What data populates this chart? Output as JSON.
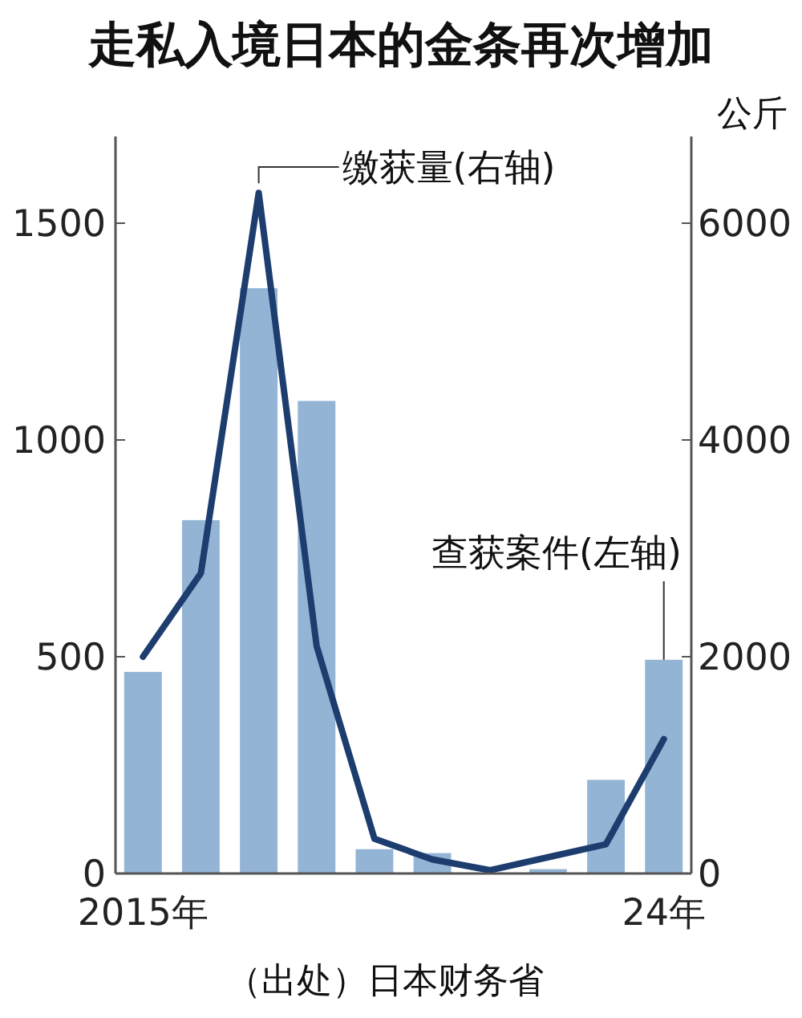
{
  "chart_data": {
    "type": "bar",
    "title": "走私入境日本的金条再次增加",
    "categories": [
      "2015年",
      null,
      null,
      null,
      null,
      null,
      null,
      null,
      null,
      "24年"
    ],
    "series": [
      {
        "name": "查获案件(左轴)",
        "color": "#93b4d4",
        "values": [
          465,
          815,
          1350,
          1090,
          56,
          47,
          null,
          10,
          216,
          493
        ]
      },
      {
        "name": "缴获量(右轴)",
        "type": "line",
        "axis": "y2",
        "color": "#1c3d6e",
        "values": [
          2000,
          2770,
          6280,
          2100,
          320,
          130,
          30,
          150,
          270,
          1240
        ]
      }
    ],
    "ylim": [
      0,
      1700
    ],
    "yticks": [
      0,
      500,
      1000,
      1500
    ],
    "y2lim": [
      0,
      6800
    ],
    "y2ticks": [
      0,
      2000,
      4000,
      6000
    ],
    "y2label": "公斤",
    "grid": false,
    "line_style": "solid",
    "marker": "none",
    "annotations": [
      "（出处）日本财务省"
    ]
  }
}
